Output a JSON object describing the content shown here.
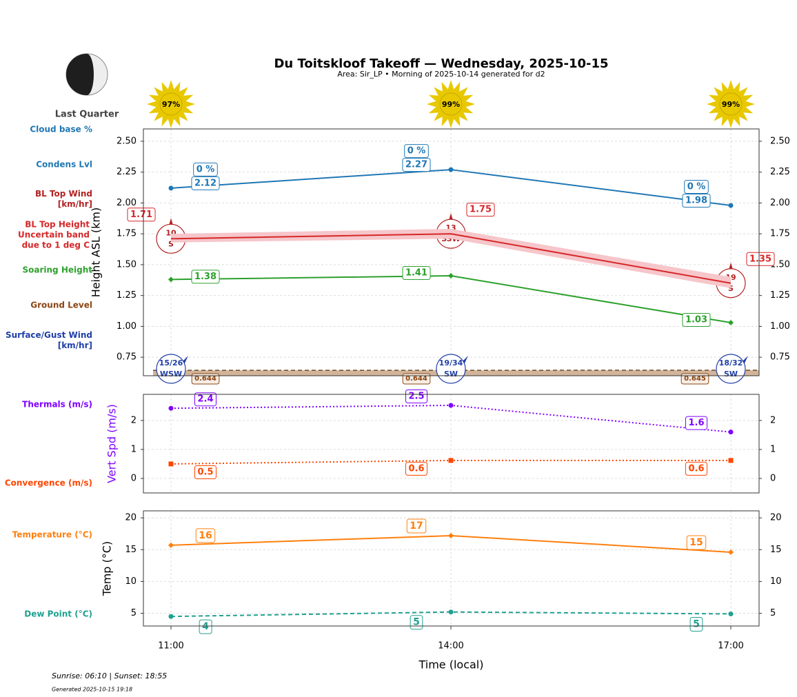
{
  "chart_data": [
    {
      "type": "line",
      "title": "Du Toitskloof Takeoff — Wednesday, 2025-10-15",
      "subtitle": "Area: Sir_LP • Morning of 2025-10-14 generated for d2",
      "ylabel": "Height ASL (km)",
      "ylim": [
        0.6,
        2.6
      ],
      "yticks": [
        0.75,
        {
          "value": 1,
          "label": "1.00"
        },
        1.25,
        {
          "value": 1.5,
          "label": "1.50"
        },
        1.75,
        {
          "value": 2,
          "label": "2.00"
        },
        2.25,
        {
          "value": 2.5,
          "label": "2.50"
        }
      ],
      "grid": true,
      "series": [
        {
          "name": "Cloud base %",
          "type": "text",
          "color": "#1f77b4",
          "values": [
            0,
            0,
            0
          ],
          "value_labels": [
            "0 %",
            "0 %",
            "0 %"
          ]
        },
        {
          "name": "Condens Lvl",
          "type": "line",
          "color": "#1f77b4",
          "marker": "circle",
          "values": [
            2.12,
            2.27,
            1.98
          ]
        },
        {
          "name": "BL Top Wind [km/hr]",
          "type": "wind",
          "color": "#b22222",
          "speeds": [
            10,
            13,
            19
          ],
          "directions": [
            "S",
            "SSW",
            "S"
          ]
        },
        {
          "name": "BL Top Height Uncertain band due to 1 deg C",
          "type": "line",
          "color": "#d62728",
          "band_color": "#f6c6ca",
          "marker": "none",
          "values": [
            1.71,
            1.75,
            1.35
          ],
          "band_lower": [
            1.68,
            1.71,
            1.31
          ],
          "band_upper": [
            1.75,
            1.79,
            1.4
          ]
        },
        {
          "name": "Soaring Height",
          "type": "line",
          "color": "#2ca02c",
          "marker": "diamond",
          "values": [
            1.38,
            1.41,
            1.03
          ]
        },
        {
          "name": "Ground Level",
          "type": "area",
          "color": "#8b4513",
          "values": [
            0.644,
            0.644,
            0.645
          ]
        },
        {
          "name": "Surface/Gust Wind [km/hr]",
          "type": "wind",
          "color": "#1f3fa8",
          "value_labels": [
            "15/26",
            "19/34",
            "18/32"
          ],
          "directions": [
            "WSW",
            "SW",
            "SW"
          ]
        }
      ]
    },
    {
      "type": "line",
      "ylabel": "Vert Spd (m/s)",
      "ylabel_color": "#7f00ff",
      "ylim": [
        -0.5,
        2.9
      ],
      "yticks": [
        0,
        1,
        2
      ],
      "grid": true,
      "series": [
        {
          "name": "Thermals (m/s)",
          "type": "line",
          "color": "#7f00ff",
          "style": "dotted",
          "marker": "circle",
          "values": [
            2.42,
            2.52,
            1.6
          ],
          "value_labels": [
            "2.4",
            "2.5",
            "1.6"
          ]
        },
        {
          "name": "Convergence (m/s)",
          "type": "line",
          "color": "#ff4500",
          "style": "dotted",
          "marker": "square",
          "values": [
            0.5,
            0.62,
            0.62
          ],
          "value_labels": [
            "0.5",
            "0.6",
            "0.6"
          ]
        }
      ]
    },
    {
      "type": "line",
      "ylabel": "Temp (°C)",
      "xlabel": "Time (local)",
      "categories": [
        "11:00",
        "14:00",
        "17:00"
      ],
      "ylim": [
        3,
        21.1
      ],
      "yticks": [
        5,
        10,
        15,
        20
      ],
      "grid": true,
      "series": [
        {
          "name": "Temperature (°C)",
          "type": "line",
          "color": "#ff7f0e",
          "marker": "diamond",
          "values": [
            15.7,
            17.2,
            14.6
          ],
          "value_labels": [
            "16",
            "17",
            "15"
          ]
        },
        {
          "name": "Dew Point (°C)",
          "type": "line",
          "color": "#20a090",
          "style": "dashed",
          "marker": "circle",
          "values": [
            4.5,
            5.2,
            4.9
          ],
          "value_labels": [
            "4",
            "5",
            "5"
          ]
        }
      ]
    }
  ],
  "header": {
    "moon_phase": "Last Quarter",
    "sun": {
      "values": [
        97,
        99,
        99
      ],
      "value_labels": [
        "97%",
        "99%",
        "99%"
      ]
    }
  },
  "footer": {
    "sun_times": "Sunrise: 06:10 | Sunset: 18:55",
    "generated": "Generated 2025-10-15 19:18"
  }
}
